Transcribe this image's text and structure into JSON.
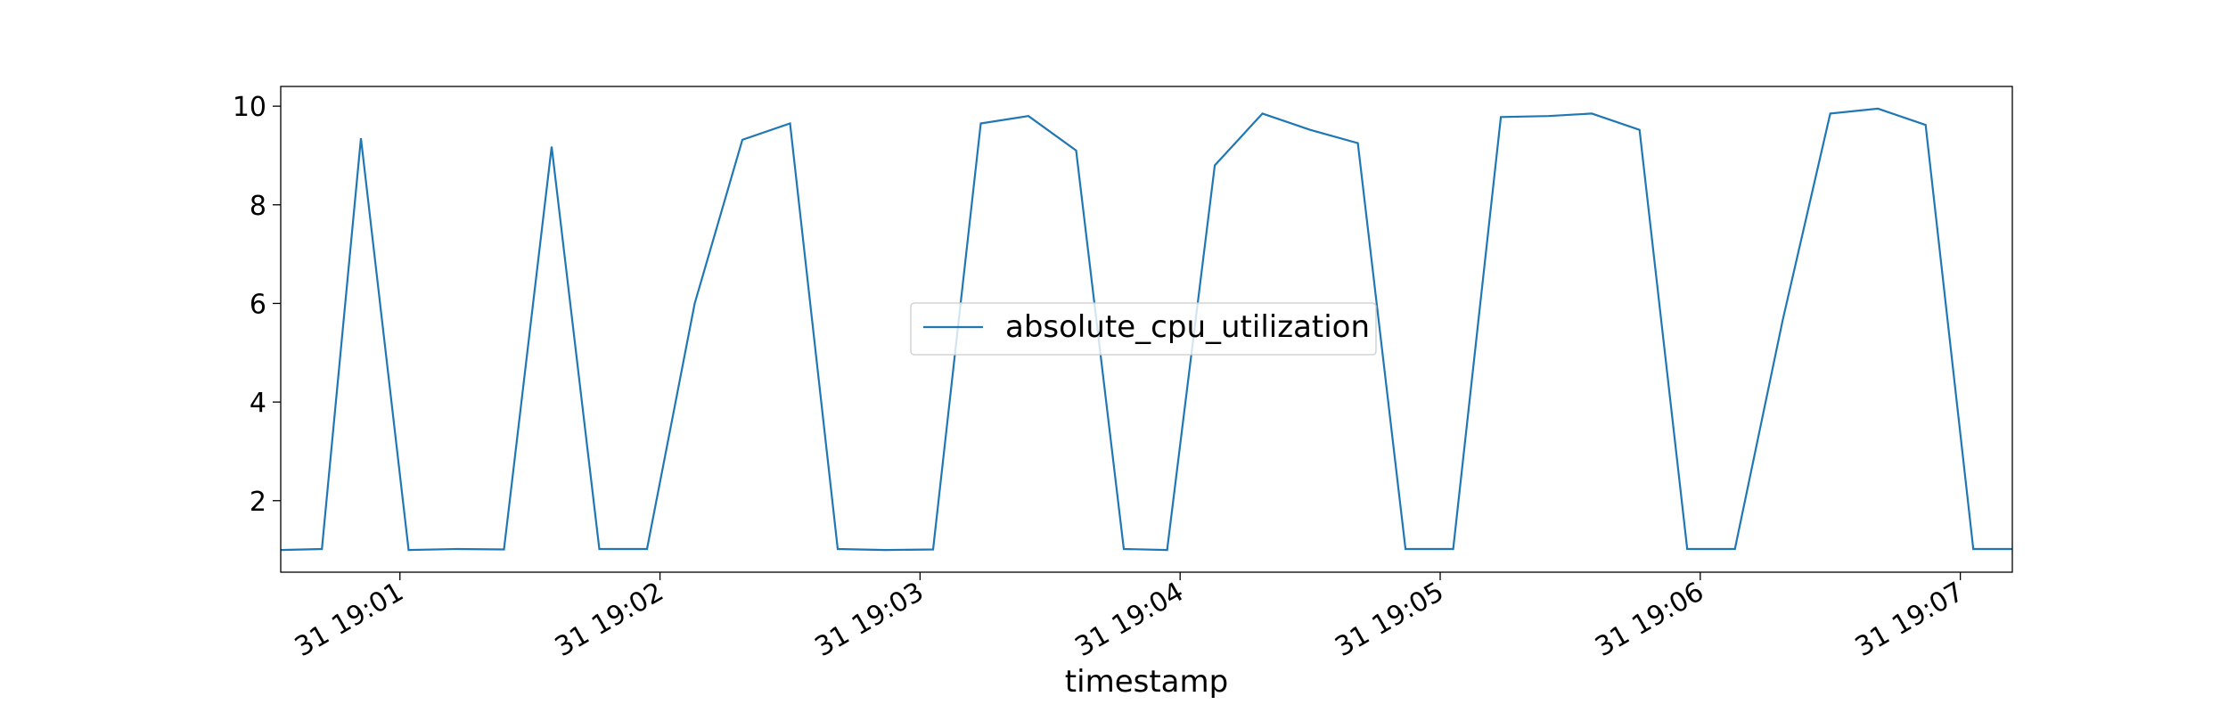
{
  "chart_data": {
    "type": "line",
    "title": "",
    "xlabel": "timestamp",
    "ylabel": "",
    "x_tick_labels": [
      "31 19:01",
      "31 19:02",
      "31 19:03",
      "31 19:04",
      "31 19:05",
      "31 19:06",
      "31 19:07"
    ],
    "x_tick_values": [
      60,
      120,
      180,
      240,
      300,
      360,
      420
    ],
    "y_tick_labels": [
      "2",
      "4",
      "6",
      "8",
      "10"
    ],
    "y_tick_values": [
      2,
      4,
      6,
      8,
      10
    ],
    "xlim": [
      32.5,
      432
    ],
    "ylim": [
      0.55,
      10.4
    ],
    "grid": false,
    "legend_position": "center",
    "series": [
      {
        "name": "absolute_cpu_utilization",
        "color": "#1f77b4",
        "x": [
          32.5,
          42,
          51,
          62,
          73,
          84,
          95,
          106,
          117,
          128,
          139,
          150,
          161,
          172,
          183,
          194,
          205,
          216,
          227,
          237,
          248,
          259,
          270,
          281,
          292,
          303,
          314,
          325,
          335,
          346,
          357,
          368,
          379,
          390,
          401,
          412,
          423,
          432
        ],
        "values": [
          1.0,
          1.02,
          9.35,
          1.0,
          1.02,
          1.01,
          9.18,
          1.02,
          1.02,
          6.0,
          9.32,
          9.65,
          1.02,
          1.0,
          1.01,
          9.65,
          9.8,
          9.1,
          1.02,
          1.0,
          8.8,
          9.85,
          9.52,
          9.25,
          1.02,
          1.02,
          9.78,
          9.8,
          9.85,
          9.52,
          1.02,
          1.02,
          5.65,
          9.85,
          9.95,
          9.62,
          1.02,
          1.02
        ]
      }
    ]
  }
}
